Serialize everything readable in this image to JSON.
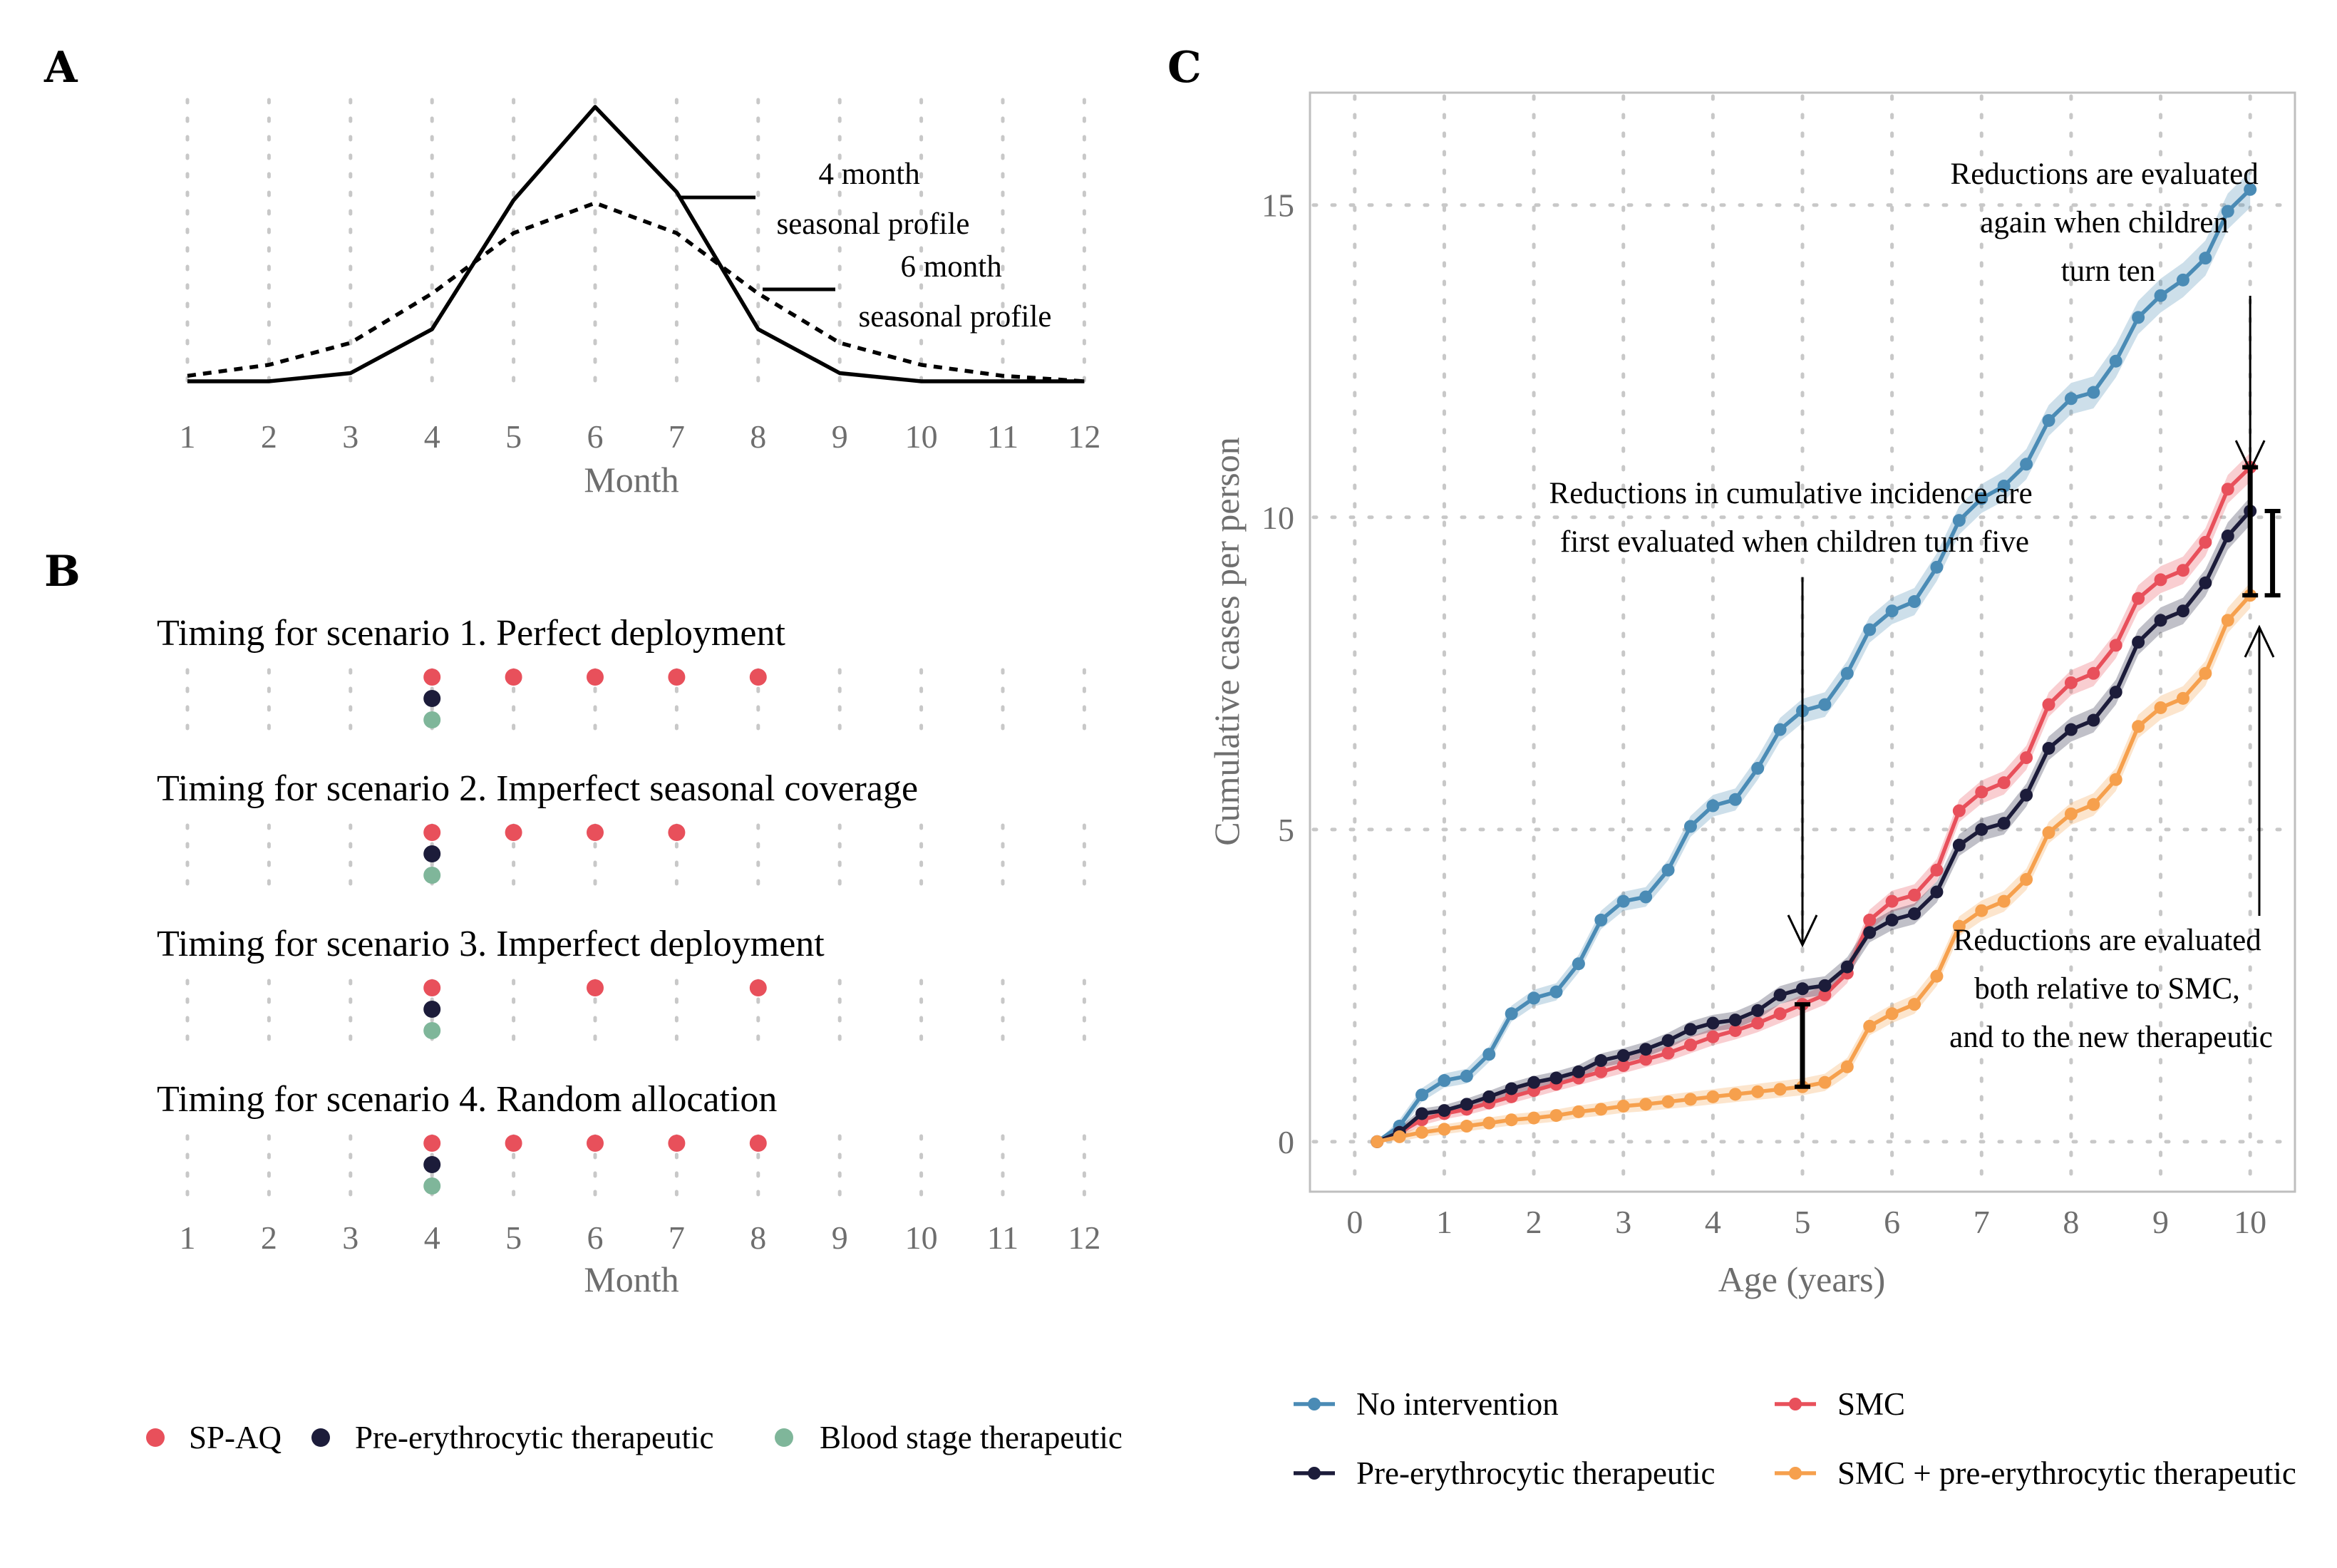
{
  "panels": {
    "A": {
      "letter": "A",
      "xlabel": "Month",
      "ticks": [
        "1",
        "2",
        "3",
        "4",
        "5",
        "6",
        "7",
        "8",
        "9",
        "10",
        "11",
        "12"
      ],
      "profile4_label": [
        "4 month",
        "seasonal profile"
      ],
      "profile6_label": [
        "6 month",
        "seasonal profile"
      ]
    },
    "B": {
      "letter": "B",
      "xlabel": "Month",
      "ticks": [
        "1",
        "2",
        "3",
        "4",
        "5",
        "6",
        "7",
        "8",
        "9",
        "10",
        "11",
        "12"
      ],
      "scenarios": [
        {
          "title": "Timing for scenario 1.  Perfect deployment",
          "spaq": [
            4,
            5,
            6,
            7,
            8
          ],
          "pre": [
            4
          ],
          "blood": [
            4
          ]
        },
        {
          "title": "Timing for scenario 2.  Imperfect seasonal coverage",
          "spaq": [
            4,
            5,
            6,
            7
          ],
          "pre": [
            4
          ],
          "blood": [
            4
          ]
        },
        {
          "title": "Timing for scenario 3.  Imperfect deployment",
          "spaq": [
            4,
            6,
            8
          ],
          "pre": [
            4
          ],
          "blood": [
            4
          ]
        },
        {
          "title": "Timing for scenario 4.  Random allocation",
          "spaq": [
            4,
            5,
            6,
            7,
            8
          ],
          "pre": [
            4
          ],
          "blood": [
            4
          ]
        }
      ],
      "legend": [
        {
          "label": "SP-AQ",
          "color": "#e8505b"
        },
        {
          "label": "Pre-erythrocytic therapeutic",
          "color": "#1c1c3a"
        },
        {
          "label": "Blood stage therapeutic",
          "color": "#7fb69a"
        }
      ]
    },
    "C": {
      "letter": "C",
      "xlabel": "Age (years)",
      "ylabel": "Cumulative cases per person",
      "annotation_top": [
        "Reductions are evaluated",
        "again when children",
        "turn ten"
      ],
      "annotation_mid": [
        "Reductions in cumulative incidence are",
        "first evaluated when children turn five"
      ],
      "annotation_bottom": [
        "Reductions are evaluated",
        "both relative to SMC,",
        "and to the new therapeutic"
      ],
      "legend": [
        {
          "label": "No intervention",
          "color": "#4a8bb5"
        },
        {
          "label": "SMC",
          "color": "#e8505b"
        },
        {
          "label": "Pre-erythrocytic therapeutic",
          "color": "#1c1c3a"
        },
        {
          "label": "SMC + pre-erythrocytic therapeutic",
          "color": "#f6a04d"
        }
      ]
    }
  },
  "chart_data": [
    {
      "panel": "A",
      "type": "line",
      "xlabel": "Month",
      "ylabel": "",
      "x": [
        1,
        2,
        3,
        4,
        5,
        6,
        7,
        8,
        9,
        10,
        11,
        12
      ],
      "ylim": [
        0,
        1
      ],
      "grid": true,
      "series": [
        {
          "name": "4 month seasonal profile",
          "style": "solid",
          "values": [
            0.0,
            0.0,
            0.03,
            0.19,
            0.66,
            1.0,
            0.69,
            0.19,
            0.03,
            0.0,
            0.0,
            0.0
          ]
        },
        {
          "name": "6 month seasonal profile",
          "style": "dashed",
          "values": [
            0.02,
            0.06,
            0.14,
            0.32,
            0.54,
            0.65,
            0.54,
            0.32,
            0.14,
            0.06,
            0.02,
            0.0
          ]
        }
      ]
    },
    {
      "panel": "B",
      "type": "scatter",
      "xlabel": "Month",
      "x_range": [
        1,
        12
      ],
      "grid": true,
      "series": [
        "SP-AQ",
        "Pre-erythrocytic therapeutic",
        "Blood stage therapeutic"
      ]
    },
    {
      "panel": "C",
      "type": "line",
      "xlabel": "Age (years)",
      "ylabel": "Cumulative cases per person",
      "xlim": [
        -0.5,
        10.5
      ],
      "ylim": [
        -0.8,
        16.8
      ],
      "xticks": [
        0,
        1,
        2,
        3,
        4,
        5,
        6,
        7,
        8,
        9,
        10
      ],
      "yticks": [
        0,
        5,
        10,
        15
      ],
      "grid": true,
      "legend_position": "bottom",
      "x": [
        0.25,
        0.5,
        0.75,
        1.0,
        1.25,
        1.5,
        1.75,
        2.0,
        2.25,
        2.5,
        2.75,
        3.0,
        3.25,
        3.5,
        3.75,
        4.0,
        4.25,
        4.5,
        4.75,
        5.0,
        5.25,
        5.5,
        5.75,
        6.0,
        6.25,
        6.5,
        6.75,
        7.0,
        7.25,
        7.5,
        7.75,
        8.0,
        8.25,
        8.5,
        8.75,
        9.0,
        9.25,
        9.5,
        9.75,
        10.0
      ],
      "series": [
        {
          "name": "No intervention",
          "color": "#4a8bb5",
          "values": [
            0.0,
            0.25,
            0.75,
            0.98,
            1.05,
            1.4,
            2.05,
            2.3,
            2.4,
            2.85,
            3.55,
            3.85,
            3.92,
            4.35,
            5.05,
            5.38,
            5.48,
            5.98,
            6.6,
            6.9,
            7.0,
            7.5,
            8.2,
            8.5,
            8.65,
            9.2,
            9.95,
            10.3,
            10.5,
            10.85,
            11.55,
            11.9,
            12.0,
            12.5,
            13.2,
            13.55,
            13.8,
            14.15,
            14.9,
            15.25
          ]
        },
        {
          "name": "SMC",
          "color": "#e8505b",
          "values": [
            0.0,
            0.15,
            0.35,
            0.45,
            0.52,
            0.62,
            0.72,
            0.82,
            0.92,
            1.02,
            1.12,
            1.22,
            1.32,
            1.42,
            1.55,
            1.68,
            1.78,
            1.9,
            2.05,
            2.2,
            2.35,
            2.7,
            3.55,
            3.85,
            3.95,
            4.35,
            5.3,
            5.6,
            5.75,
            6.15,
            7.0,
            7.35,
            7.5,
            7.95,
            8.7,
            9.0,
            9.15,
            9.6,
            10.45,
            10.8
          ]
        },
        {
          "name": "Pre-erythrocytic therapeutic",
          "color": "#1c1c3a",
          "values": [
            0.0,
            0.15,
            0.45,
            0.5,
            0.6,
            0.72,
            0.85,
            0.95,
            1.02,
            1.12,
            1.3,
            1.38,
            1.48,
            1.62,
            1.8,
            1.9,
            1.95,
            2.1,
            2.35,
            2.45,
            2.5,
            2.8,
            3.35,
            3.55,
            3.65,
            4.0,
            4.75,
            5.0,
            5.1,
            5.55,
            6.3,
            6.6,
            6.75,
            7.2,
            8.0,
            8.35,
            8.5,
            8.95,
            9.7,
            10.1
          ]
        },
        {
          "name": "SMC + pre-erythrocytic therapeutic",
          "color": "#f6a04d",
          "values": [
            0.0,
            0.08,
            0.15,
            0.2,
            0.25,
            0.3,
            0.35,
            0.38,
            0.42,
            0.48,
            0.52,
            0.57,
            0.6,
            0.64,
            0.68,
            0.72,
            0.76,
            0.8,
            0.84,
            0.88,
            0.95,
            1.2,
            1.85,
            2.05,
            2.2,
            2.65,
            3.45,
            3.7,
            3.85,
            4.2,
            4.95,
            5.25,
            5.4,
            5.8,
            6.65,
            6.95,
            7.1,
            7.5,
            8.35,
            8.75
          ]
        }
      ]
    }
  ]
}
